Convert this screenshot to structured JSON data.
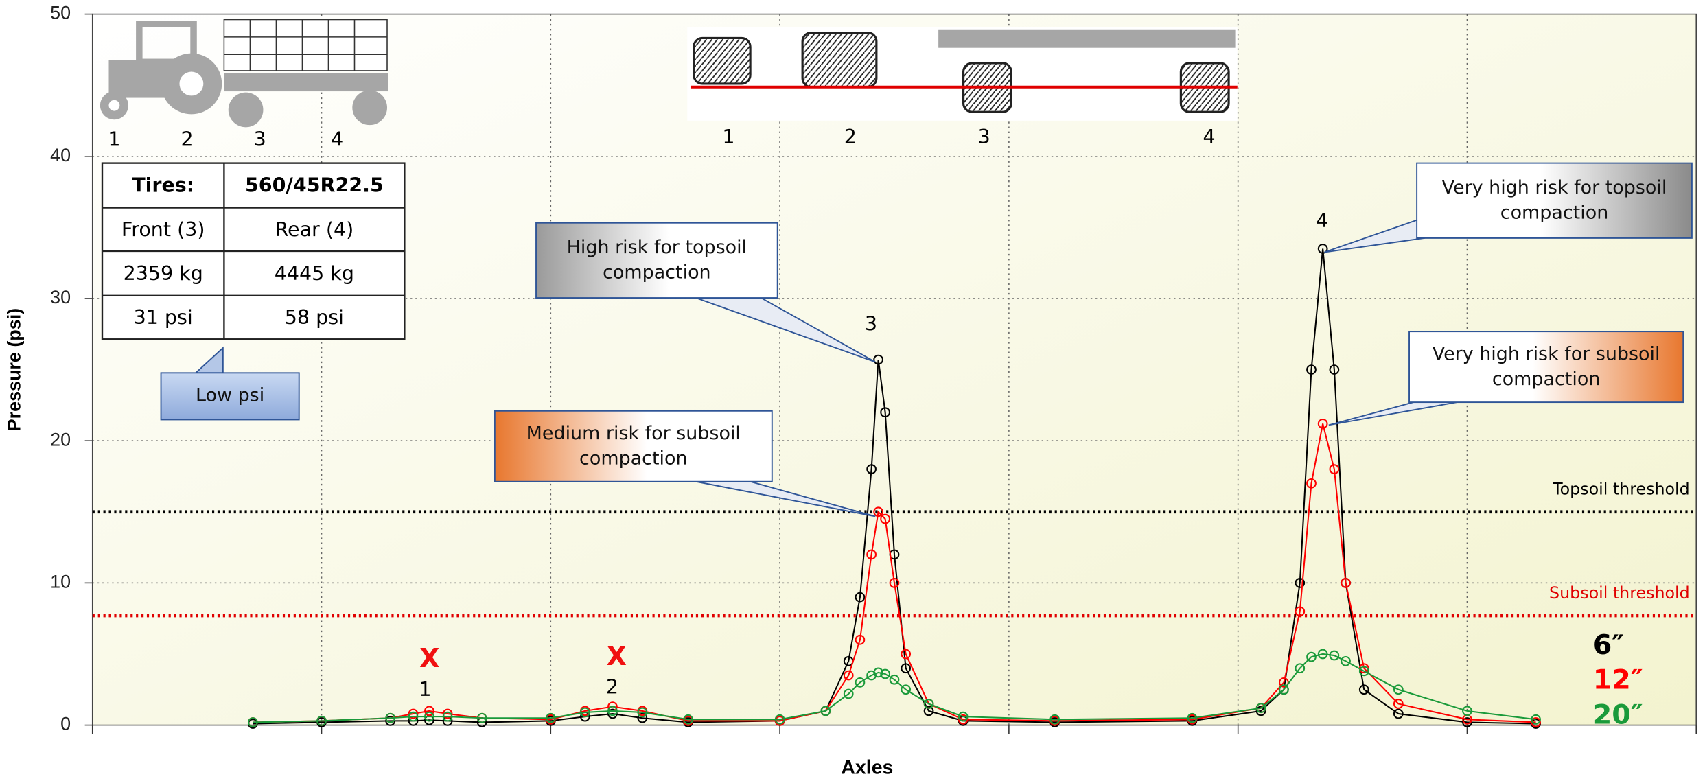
{
  "chart_data": {
    "type": "line",
    "y_label": "Pressure (psi)",
    "x_label": "Axles",
    "ylim": [
      0,
      50
    ],
    "yticks": [
      0,
      10,
      20,
      30,
      40,
      50
    ],
    "xlim": [
      0,
      7
    ],
    "xticks": [
      0,
      1,
      2,
      3,
      4,
      5,
      6,
      7
    ],
    "grid": true,
    "x": [
      0.7,
      1.0,
      1.3,
      1.4,
      1.47,
      1.55,
      1.7,
      2.0,
      2.15,
      2.27,
      2.4,
      2.6,
      3.0,
      3.2,
      3.3,
      3.35,
      3.4,
      3.43,
      3.46,
      3.5,
      3.55,
      3.65,
      3.8,
      4.2,
      4.8,
      5.1,
      5.2,
      5.27,
      5.32,
      5.37,
      5.42,
      5.47,
      5.55,
      5.7,
      6.0,
      6.3
    ],
    "series": [
      {
        "name": "6″",
        "color": "#000000",
        "values": [
          0.1,
          0.2,
          0.3,
          0.3,
          0.35,
          0.3,
          0.2,
          0.3,
          0.6,
          0.8,
          0.5,
          0.2,
          0.3,
          1.0,
          4.5,
          9,
          18,
          25.7,
          22,
          12,
          4,
          1,
          0.3,
          0.2,
          0.3,
          1.0,
          2.5,
          10,
          25,
          33.5,
          25,
          10,
          2.5,
          0.8,
          0.2,
          0.1
        ]
      },
      {
        "name": "12″",
        "color": "#ff0000",
        "values": [
          0.2,
          0.3,
          0.5,
          0.8,
          1.0,
          0.8,
          0.5,
          0.4,
          1.0,
          1.3,
          1.0,
          0.3,
          0.3,
          1.0,
          3.5,
          6,
          12,
          15,
          14.5,
          10,
          5,
          1.5,
          0.4,
          0.3,
          0.4,
          1.2,
          3,
          8,
          17,
          21.2,
          18,
          10,
          4,
          1.5,
          0.4,
          0.2
        ]
      },
      {
        "name": "20″",
        "color": "#1a9a3a",
        "values": [
          0.2,
          0.3,
          0.5,
          0.6,
          0.6,
          0.6,
          0.5,
          0.5,
          0.9,
          1.0,
          0.9,
          0.4,
          0.4,
          1.0,
          2.2,
          3.0,
          3.5,
          3.7,
          3.6,
          3.2,
          2.5,
          1.5,
          0.6,
          0.4,
          0.5,
          1.2,
          2.5,
          4,
          4.8,
          5.0,
          4.9,
          4.5,
          3.8,
          2.5,
          1.0,
          0.4
        ]
      }
    ],
    "thresholds": [
      {
        "label": "Topsoil threshold",
        "value": 15,
        "color": "#000000"
      },
      {
        "label": "Subsoil threshold",
        "value": 7.7,
        "color": "#e00000"
      }
    ],
    "peak_labels": [
      "1",
      "2",
      "3",
      "4"
    ],
    "axle_marks": [
      "X",
      "X"
    ],
    "annotations": [
      {
        "text": "High risk for topsoil compaction"
      },
      {
        "text": "Very high risk for topsoil compaction"
      },
      {
        "text": "Medium risk for subsoil compaction"
      },
      {
        "text": "Very high risk for subsoil compaction"
      },
      {
        "text": "Low psi"
      }
    ],
    "table": {
      "header": [
        "Tires:",
        "560/45R22.5"
      ],
      "rows": [
        [
          "Front (3)",
          "Rear (4)"
        ],
        [
          "2359 kg",
          "4445 kg"
        ],
        [
          "31 psi",
          "58 psi"
        ]
      ]
    },
    "tractor_axles": [
      "1",
      "2",
      "3",
      "4"
    ],
    "tire_axles": [
      "1",
      "2",
      "3",
      "4"
    ]
  }
}
